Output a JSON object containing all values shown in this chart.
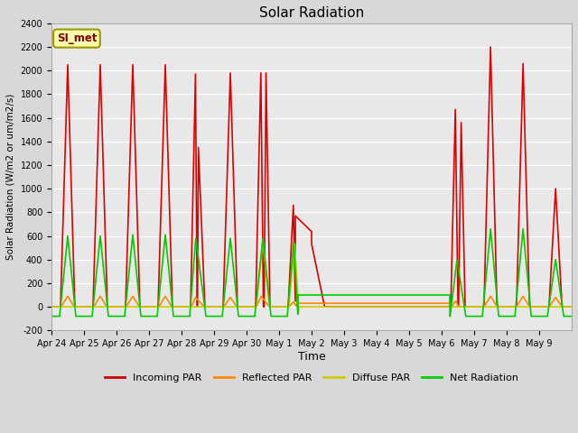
{
  "title": "Solar Radiation",
  "ylabel": "Solar Radiation (W/m2 or um/m2/s)",
  "xlabel": "Time",
  "ylim": [
    -200,
    2400
  ],
  "yticks": [
    -200,
    0,
    200,
    400,
    600,
    800,
    1000,
    1200,
    1400,
    1600,
    1800,
    2000,
    2200,
    2400
  ],
  "xtick_labels": [
    "Apr 24",
    "Apr 25",
    "Apr 26",
    "Apr 27",
    "Apr 28",
    "Apr 29",
    "Apr 30",
    "May 1",
    "May 2",
    "May 3",
    "May 4",
    "May 5",
    "May 6",
    "May 7",
    "May 8",
    "May 9"
  ],
  "background_color": "#e8e8e8",
  "plot_bg_color": "#e8e8e8",
  "legend_entries": [
    "Incoming PAR",
    "Reflected PAR",
    "Diffuse PAR",
    "Net Radiation"
  ],
  "legend_colors": [
    "#cc0000",
    "#ff8800",
    "#cccc00",
    "#00cc00"
  ],
  "station_label": "SI_met",
  "line_width": 1.2,
  "incoming_par_color": "#dd0000",
  "reflected_par_color": "#ff8800",
  "diffuse_par_color": "#cccc00",
  "net_radiation_color": "#00cc00"
}
